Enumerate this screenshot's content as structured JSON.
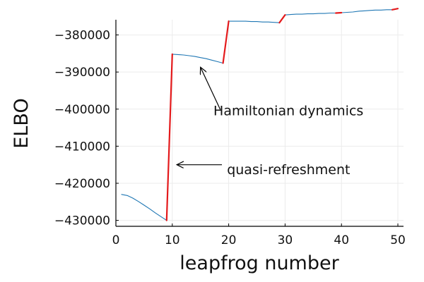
{
  "chart_data": {
    "type": "line",
    "title": "",
    "xlabel": "leapfrog number",
    "ylabel": "ELBO",
    "xlim": [
      0,
      51
    ],
    "ylim": [
      -431600,
      -375900
    ],
    "xticks": [
      0,
      10,
      20,
      30,
      40,
      50
    ],
    "yticks": [
      -430000,
      -420000,
      -410000,
      -400000,
      -390000,
      -380000
    ],
    "ytick_labels": [
      "−430000",
      "−420000",
      "−410000",
      "−400000",
      "−390000",
      "−380000"
    ],
    "grid": true,
    "legend": "none",
    "series": [
      {
        "role": "hamiltonian",
        "color": "#1f77b4",
        "segments": [
          {
            "x": [
              1,
              2,
              3,
              4,
              5,
              6,
              7,
              8,
              9
            ],
            "y": [
              -423000,
              -423300,
              -424000,
              -424900,
              -425900,
              -426900,
              -428000,
              -429000,
              -430000
            ]
          },
          {
            "x": [
              10,
              11,
              12,
              13,
              14,
              15,
              16,
              17,
              18,
              19
            ],
            "y": [
              -385200,
              -385300,
              -385400,
              -385600,
              -385800,
              -386100,
              -386400,
              -386800,
              -387200,
              -387600
            ]
          },
          {
            "x": [
              20,
              21,
              22,
              23,
              24,
              25,
              26,
              27,
              28,
              29
            ],
            "y": [
              -376300,
              -376300,
              -376300,
              -376300,
              -376400,
              -376400,
              -376500,
              -376500,
              -376600,
              -376700
            ]
          },
          {
            "x": [
              30,
              31,
              32,
              33,
              34,
              35,
              36,
              37,
              38,
              39
            ],
            "y": [
              -374600,
              -374500,
              -374400,
              -374400,
              -374300,
              -374300,
              -374200,
              -374200,
              -374100,
              -374100
            ]
          },
          {
            "x": [
              40,
              41,
              42,
              43,
              44,
              45,
              46,
              47,
              48,
              49
            ],
            "y": [
              -374000,
              -373900,
              -373800,
              -373600,
              -373500,
              -373400,
              -373300,
              -373300,
              -373200,
              -373200
            ]
          }
        ]
      },
      {
        "role": "refreshment",
        "color": "#e41a1c",
        "segments": [
          {
            "x": [
              9,
              10
            ],
            "y": [
              -430000,
              -385200
            ]
          },
          {
            "x": [
              19,
              20
            ],
            "y": [
              -387600,
              -376300
            ]
          },
          {
            "x": [
              29,
              30
            ],
            "y": [
              -376700,
              -374600
            ]
          },
          {
            "x": [
              39,
              40
            ],
            "y": [
              -374100,
              -374000
            ]
          },
          {
            "x": [
              49,
              50
            ],
            "y": [
              -373200,
              -372900
            ]
          }
        ]
      }
    ],
    "annotations": [
      {
        "text": "Hamiltonian dynamics",
        "anchor_x": 17.3,
        "anchor_y": -401700,
        "arrow_from": [
          18.5,
          -400100
        ],
        "arrow_to": [
          15.0,
          -388700
        ]
      },
      {
        "text": "quasi-refreshment",
        "anchor_x": 19.7,
        "anchor_y": -417500,
        "arrow_from": [
          18.8,
          -415000
        ],
        "arrow_to": [
          10.8,
          -415000
        ]
      }
    ]
  }
}
